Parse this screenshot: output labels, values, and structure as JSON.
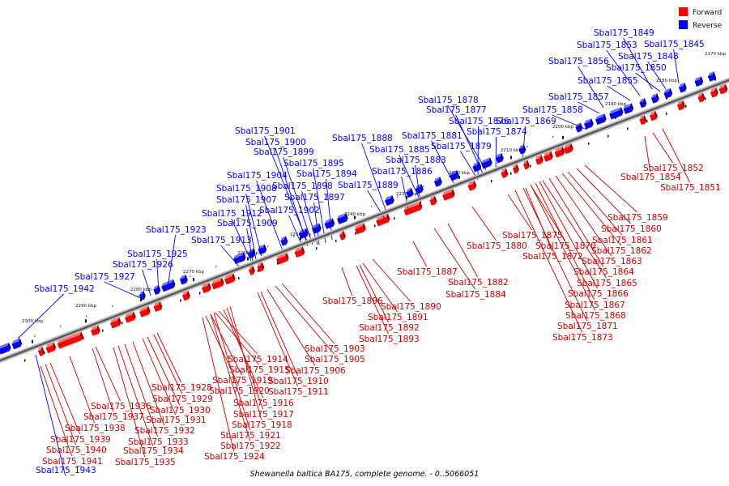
{
  "legend": {
    "forward": {
      "label": "Forward",
      "color": "#ff0000"
    },
    "reverse": {
      "label": "Reverse",
      "color": "#0000ff"
    }
  },
  "caption": "Shewanella baltica BA175, complete genome. - 0..5066051",
  "ticks": [
    "2170 kbp",
    "2180 kbp",
    "2190 kbp",
    "2200 kbp",
    "2210 kbp",
    "2220 kbp",
    "2230 kbp",
    "2240 kbp",
    "2250 kbp",
    "2260 kbp",
    "2270 kbp",
    "2280 kbp",
    "2290 kbp",
    "2300 kbp"
  ],
  "reverse_genes": [
    "Sbal175_1849",
    "Sbal175_1853",
    "Sbal175_1845",
    "Sbal175_1848",
    "Sbal175_1856",
    "Sbal175_1850",
    "Sbal175_1855",
    "Sbal175_1857",
    "Sbal175_1878",
    "Sbal175_1858",
    "Sbal175_1877",
    "Sbal175_1876",
    "Sbal175_1869",
    "Sbal175_1874",
    "Sbal175_1901",
    "Sbal175_1881",
    "Sbal175_1900",
    "Sbal175_1888",
    "Sbal175_1879",
    "Sbal175_1899",
    "Sbal175_1885",
    "Sbal175_1895",
    "Sbal175_1883",
    "Sbal175_1904",
    "Sbal175_1894",
    "Sbal175_1886",
    "Sbal175_1908",
    "Sbal175_1898",
    "Sbal175_1889",
    "Sbal175_1907",
    "Sbal175_1897",
    "Sbal175_1902",
    "Sbal175_1912",
    "Sbal175_1909",
    "Sbal175_1923",
    "Sbal175_1913",
    "Sbal175_1925",
    "Sbal175_1926",
    "Sbal175_1927",
    "Sbal175_1942",
    "Sbal175_1943"
  ],
  "forward_genes": [
    "Sbal175_1852",
    "Sbal175_1854",
    "Sbal175_1851",
    "Sbal175_1859",
    "Sbal175_1860",
    "Sbal175_1861",
    "Sbal175_1875",
    "Sbal175_1862",
    "Sbal175_1880",
    "Sbal175_1870",
    "Sbal175_1872",
    "Sbal175_1863",
    "Sbal175_1864",
    "Sbal175_1887",
    "Sbal175_1865",
    "Sbal175_1882",
    "Sbal175_1866",
    "Sbal175_1884",
    "Sbal175_1867",
    "Sbal175_1868",
    "Sbal175_1896",
    "Sbal175_1890",
    "Sbal175_1871",
    "Sbal175_1891",
    "Sbal175_1873",
    "Sbal175_1892",
    "Sbal175_1893",
    "Sbal175_1903",
    "Sbal175_1914",
    "Sbal175_1905",
    "Sbal175_1915",
    "Sbal175_1906",
    "Sbal175_1919",
    "Sbal175_1910",
    "Sbal175_1920",
    "Sbal175_1911",
    "Sbal175_1928",
    "Sbal175_1929",
    "Sbal175_1916",
    "Sbal175_1936",
    "Sbal175_1930",
    "Sbal175_1917",
    "Sbal175_1937",
    "Sbal175_1931",
    "Sbal175_1918",
    "Sbal175_1938",
    "Sbal175_1932",
    "Sbal175_1921",
    "Sbal175_1939",
    "Sbal175_1933",
    "Sbal175_1922",
    "Sbal175_1940",
    "Sbal175_1934",
    "Sbal175_1924",
    "Sbal175_1941",
    "Sbal175_1935"
  ]
}
